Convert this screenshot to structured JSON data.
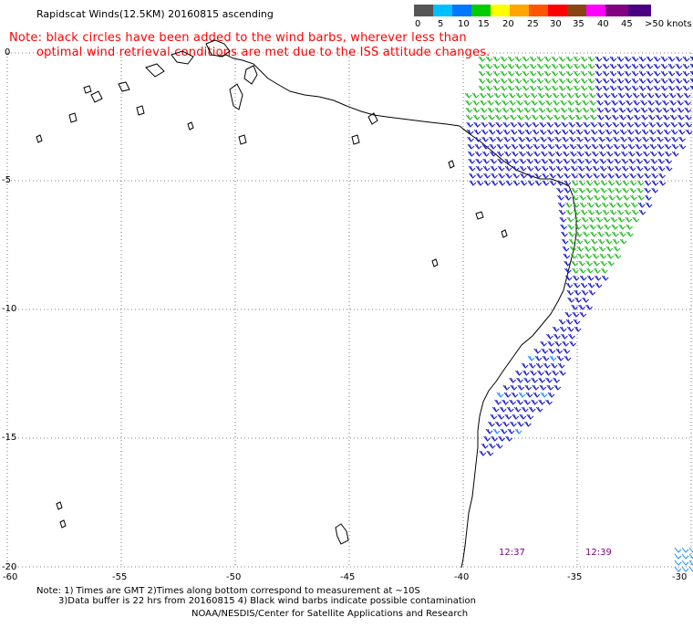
{
  "title": "Rapidscat Winds(12.5KM) 20160815 ascending",
  "note_line1": "Note: black circles have been added to the wind barbs, wherever less than",
  "note_line2": "optimal wind retrieval conditions are met due to the ISS attitude changes.",
  "legend": {
    "labels": [
      "0",
      "5",
      "10",
      "15",
      "20",
      "25",
      "30",
      "35",
      "40",
      "45",
      ">50 knots"
    ],
    "colors": [
      "#555555",
      "#00bfff",
      "#0077ff",
      "#00cc00",
      "#ffff00",
      "#ffa500",
      "#ff5500",
      "#ff0000",
      "#8b4513",
      "#ff00ff",
      "#800080",
      "#4b0082"
    ]
  },
  "axes": {
    "lat_labels": [
      "0",
      "-5",
      "-10",
      "-15",
      "-20"
    ],
    "lon_labels": [
      "-60",
      "-55",
      "-50",
      "-45",
      "-40",
      "-35",
      "-30"
    ]
  },
  "time_labels": [
    "12:37",
    "12:39"
  ],
  "footer_line1": "Note: 1) Times are GMT 2)Times along bottom correspond to measurement at ~10S",
  "footer_line2": "3)Data buffer is 22 hrs from 20160815 4) Black wind barbs indicate possible contamination",
  "credit": "NOAA/NESDIS/Center for Satellite Applications and Research",
  "map_colors": {
    "grid": "#555555",
    "coast": "#000000",
    "barb_green": "#22bb22",
    "barb_blue": "#1a1acc",
    "barb_cyan": "#1a8cff"
  }
}
